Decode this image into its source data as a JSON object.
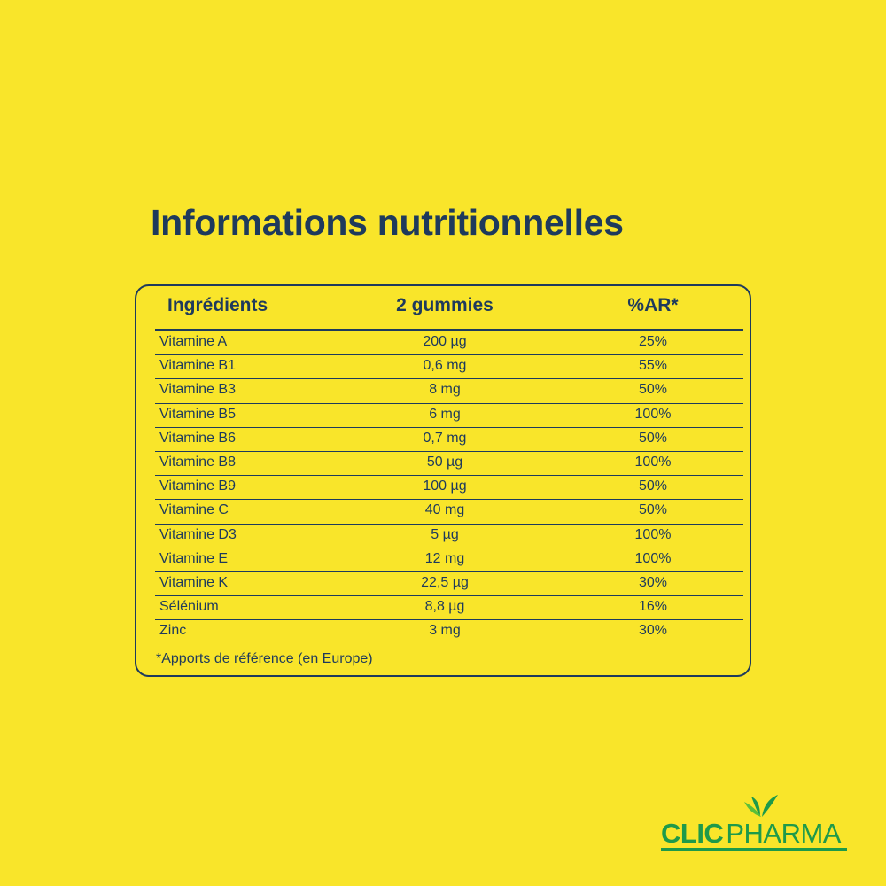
{
  "title": "Informations nutritionnelles",
  "table": {
    "headers": {
      "ingredient": "Ingrédients",
      "dose": "2 gummies",
      "ar": "%AR*"
    },
    "rows": [
      {
        "name": "Vitamine A",
        "dose": "200 µg",
        "ar": "25%"
      },
      {
        "name": "Vitamine B1",
        "dose": "0,6 mg",
        "ar": "55%"
      },
      {
        "name": "Vitamine B3",
        "dose": "8 mg",
        "ar": "50%"
      },
      {
        "name": "Vitamine B5",
        "dose": "6 mg",
        "ar": "100%"
      },
      {
        "name": "Vitamine B6",
        "dose": "0,7 mg",
        "ar": "50%"
      },
      {
        "name": "Vitamine B8",
        "dose": "50 µg",
        "ar": "100%"
      },
      {
        "name": "Vitamine B9",
        "dose": "100 µg",
        "ar": "50%"
      },
      {
        "name": "Vitamine C",
        "dose": "40 mg",
        "ar": "50%"
      },
      {
        "name": "Vitamine D3",
        "dose": "5 µg",
        "ar": "100%"
      },
      {
        "name": "Vitamine E",
        "dose": "12 mg",
        "ar": "100%"
      },
      {
        "name": "Vitamine K",
        "dose": "22,5 µg",
        "ar": "30%"
      },
      {
        "name": "Sélénium",
        "dose": "8,8 µg",
        "ar": "16%"
      },
      {
        "name": "Zinc",
        "dose": "3 mg",
        "ar": "30%"
      }
    ],
    "footnote": "*Apports de référence (en Europe)"
  },
  "logo": {
    "part1": "CLIC",
    "part2": "PHARMA",
    "icon": "leaf-icon"
  },
  "colors": {
    "background": "#f9e52a",
    "text": "#1e3a5c",
    "brand": "#1e9a4a"
  }
}
